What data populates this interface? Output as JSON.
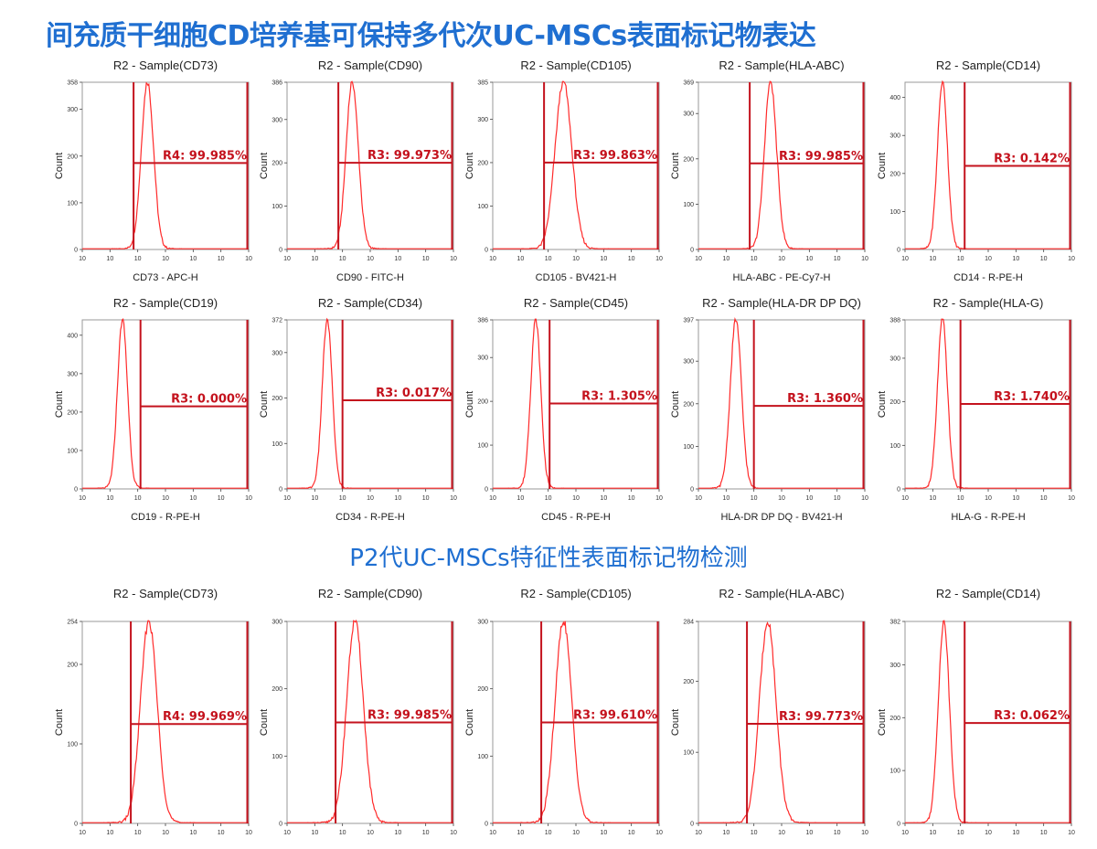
{
  "header": {
    "title": "间充质干细胞CD培养基可保持多代次UC-MSCs表面标记物表达",
    "section_title": "P2代UC-MSCs特征性表面标记物检测"
  },
  "colors": {
    "title": "#1f6fd1",
    "histogram": "#ff2a2a",
    "gate": "#c4121d",
    "axis": "#444444"
  },
  "chart_data": [
    {
      "type": "area",
      "row": 1,
      "title": "R2 - Sample(CD73)",
      "xlabel": "CD73 - APC-H",
      "ylabel": "Count",
      "x_scale": "log",
      "x_ticks": [
        "10",
        "10",
        "10",
        "10",
        "10",
        "10",
        "10"
      ],
      "ylim": [
        0,
        358
      ],
      "y_ticks": [
        0,
        100,
        200,
        300,
        358
      ],
      "peak_x": 2.35,
      "peak_sd": 0.22,
      "peak_y": 358,
      "gate_start": 1.85,
      "gate_level": 185,
      "gate_label": "R4: 99.985%"
    },
    {
      "type": "area",
      "row": 1,
      "title": "R2 - Sample(CD90)",
      "xlabel": "CD90 - FITC-H",
      "ylabel": "Count",
      "x_scale": "log",
      "x_ticks": [
        "10",
        "10",
        "10",
        "10",
        "10",
        "10",
        "10"
      ],
      "ylim": [
        0,
        386
      ],
      "y_ticks": [
        0,
        100,
        200,
        300,
        386
      ],
      "peak_x": 2.35,
      "peak_sd": 0.22,
      "peak_y": 386,
      "gate_start": 1.85,
      "gate_level": 200,
      "gate_label": "R3: 99.973%"
    },
    {
      "type": "area",
      "row": 1,
      "title": "R2 - Sample(CD105)",
      "xlabel": "CD105 - BV421-H",
      "ylabel": "Count",
      "x_scale": "log",
      "x_ticks": [
        "10",
        "10",
        "10",
        "10",
        "10",
        "10",
        "10"
      ],
      "ylim": [
        0,
        385
      ],
      "y_ticks": [
        0,
        100,
        200,
        300,
        385
      ],
      "peak_x": 2.55,
      "peak_sd": 0.3,
      "peak_y": 385,
      "gate_start": 1.85,
      "gate_level": 200,
      "gate_label": "R3: 99.863%"
    },
    {
      "type": "area",
      "row": 1,
      "title": "R2 - Sample(HLA-ABC)",
      "xlabel": "HLA-ABC - PE-Cy7-H",
      "ylabel": "Count",
      "x_scale": "log",
      "x_ticks": [
        "10",
        "10",
        "10",
        "10",
        "10",
        "10",
        "10"
      ],
      "ylim": [
        0,
        369
      ],
      "y_ticks": [
        0,
        100,
        200,
        300,
        369
      ],
      "peak_x": 2.6,
      "peak_sd": 0.22,
      "peak_y": 369,
      "gate_start": 1.85,
      "gate_level": 190,
      "gate_label": "R3: 99.985%"
    },
    {
      "type": "area",
      "row": 1,
      "title": "R2 - Sample(CD14)",
      "xlabel": "CD14 - R-PE-H",
      "ylabel": "Count",
      "x_scale": "log",
      "x_ticks": [
        "10",
        "10",
        "10",
        "10",
        "10",
        "10",
        "10"
      ],
      "ylim": [
        0,
        440
      ],
      "y_ticks": [
        0,
        100,
        200,
        300,
        400
      ],
      "peak_x": 1.35,
      "peak_sd": 0.18,
      "peak_y": 440,
      "gate_start": 2.15,
      "gate_level": 220,
      "gate_label": "R3: 0.142%"
    },
    {
      "type": "area",
      "row": 2,
      "title": "R2 - Sample(CD19)",
      "xlabel": "CD19 - R-PE-H",
      "ylabel": "Count",
      "x_scale": "log",
      "x_ticks": [
        "10",
        "10",
        "10",
        "10",
        "10",
        "10",
        "10"
      ],
      "ylim": [
        0,
        440
      ],
      "y_ticks": [
        0,
        100,
        200,
        300,
        400
      ],
      "peak_x": 1.45,
      "peak_sd": 0.18,
      "peak_y": 440,
      "gate_start": 2.1,
      "gate_level": 215,
      "gate_label": "R3: 0.000%"
    },
    {
      "type": "area",
      "row": 2,
      "title": "R2 - Sample(CD34)",
      "xlabel": "CD34 - R-PE-H",
      "ylabel": "Count",
      "x_scale": "log",
      "x_ticks": [
        "10",
        "10",
        "10",
        "10",
        "10",
        "10",
        "10"
      ],
      "ylim": [
        0,
        372
      ],
      "y_ticks": [
        0,
        100,
        200,
        300,
        372
      ],
      "peak_x": 1.45,
      "peak_sd": 0.18,
      "peak_y": 372,
      "gate_start": 2.0,
      "gate_level": 195,
      "gate_label": "R3: 0.017%"
    },
    {
      "type": "area",
      "row": 2,
      "title": "R2 - Sample(CD45)",
      "xlabel": "CD45 - R-PE-H",
      "ylabel": "Count",
      "x_scale": "log",
      "x_ticks": [
        "10",
        "10",
        "10",
        "10",
        "10",
        "10",
        "10"
      ],
      "ylim": [
        0,
        386
      ],
      "y_ticks": [
        0,
        100,
        200,
        300,
        386
      ],
      "peak_x": 1.55,
      "peak_sd": 0.18,
      "peak_y": 386,
      "gate_start": 2.05,
      "gate_level": 195,
      "gate_label": "R3: 1.305%"
    },
    {
      "type": "area",
      "row": 2,
      "title": "R2 - Sample(HLA-DR DP DQ)",
      "xlabel": "HLA-DR DP DQ - BV421-H",
      "ylabel": "Count",
      "x_scale": "log",
      "x_ticks": [
        "10",
        "10",
        "10",
        "10",
        "10",
        "10",
        "10"
      ],
      "ylim": [
        0,
        397
      ],
      "y_ticks": [
        0,
        100,
        200,
        300,
        397
      ],
      "peak_x": 1.35,
      "peak_sd": 0.2,
      "peak_y": 397,
      "gate_start": 2.0,
      "gate_level": 195,
      "gate_label": "R3: 1.360%"
    },
    {
      "type": "area",
      "row": 2,
      "title": "R2 - Sample(HLA-G)",
      "xlabel": "HLA-G - R-PE-H",
      "ylabel": "Count",
      "x_scale": "log",
      "x_ticks": [
        "10",
        "10",
        "10",
        "10",
        "10",
        "10",
        "10"
      ],
      "ylim": [
        0,
        388
      ],
      "y_ticks": [
        0,
        100,
        200,
        300,
        388
      ],
      "peak_x": 1.35,
      "peak_sd": 0.18,
      "peak_y": 388,
      "gate_start": 2.0,
      "gate_level": 195,
      "gate_label": "R3: 1.740%"
    },
    {
      "type": "area",
      "row": 3,
      "title": "R2 - Sample(CD73)",
      "xlabel": "",
      "ylabel": "Count",
      "x_scale": "log",
      "x_ticks": [
        "10",
        "10",
        "10",
        "10",
        "10",
        "10",
        "10"
      ],
      "ylim": [
        0,
        254
      ],
      "y_ticks": [
        0,
        100,
        200,
        254
      ],
      "peak_x": 2.4,
      "peak_sd": 0.3,
      "peak_y": 254,
      "gate_start": 1.75,
      "gate_level": 125,
      "gate_label": "R4: 99.969%"
    },
    {
      "type": "area",
      "row": 3,
      "title": "R2 - Sample(CD90)",
      "xlabel": "",
      "ylabel": "Count",
      "x_scale": "log",
      "x_ticks": [
        "10",
        "10",
        "10",
        "10",
        "10",
        "10",
        "10"
      ],
      "ylim": [
        0,
        300
      ],
      "y_ticks": [
        0,
        100,
        200,
        300
      ],
      "peak_x": 2.45,
      "peak_sd": 0.3,
      "peak_y": 300,
      "gate_start": 1.75,
      "gate_level": 150,
      "gate_label": "R3: 99.985%"
    },
    {
      "type": "area",
      "row": 3,
      "title": "R2 - Sample(CD105)",
      "xlabel": "",
      "ylabel": "Count",
      "x_scale": "log",
      "x_ticks": [
        "10",
        "10",
        "10",
        "10",
        "10",
        "10",
        "10"
      ],
      "ylim": [
        0,
        300
      ],
      "y_ticks": [
        0,
        100,
        200,
        300
      ],
      "peak_x": 2.55,
      "peak_sd": 0.3,
      "peak_y": 300,
      "gate_start": 1.75,
      "gate_level": 150,
      "gate_label": "R3: 99.610%"
    },
    {
      "type": "area",
      "row": 3,
      "title": "R2 - Sample(HLA-ABC)",
      "xlabel": "",
      "ylabel": "Count",
      "x_scale": "log",
      "x_ticks": [
        "10",
        "10",
        "10",
        "10",
        "10",
        "10",
        "10"
      ],
      "ylim": [
        0,
        284
      ],
      "y_ticks": [
        0,
        100,
        200,
        284
      ],
      "peak_x": 2.5,
      "peak_sd": 0.3,
      "peak_y": 284,
      "gate_start": 1.75,
      "gate_level": 140,
      "gate_label": "R3: 99.773%"
    },
    {
      "type": "area",
      "row": 3,
      "title": "R2 - Sample(CD14)",
      "xlabel": "",
      "ylabel": "Count",
      "x_scale": "log",
      "x_ticks": [
        "10",
        "10",
        "10",
        "10",
        "10",
        "10",
        "10"
      ],
      "ylim": [
        0,
        382
      ],
      "y_ticks": [
        0,
        100,
        200,
        300,
        382
      ],
      "peak_x": 1.4,
      "peak_sd": 0.2,
      "peak_y": 382,
      "gate_start": 2.15,
      "gate_level": 190,
      "gate_label": "R3: 0.062%"
    }
  ]
}
